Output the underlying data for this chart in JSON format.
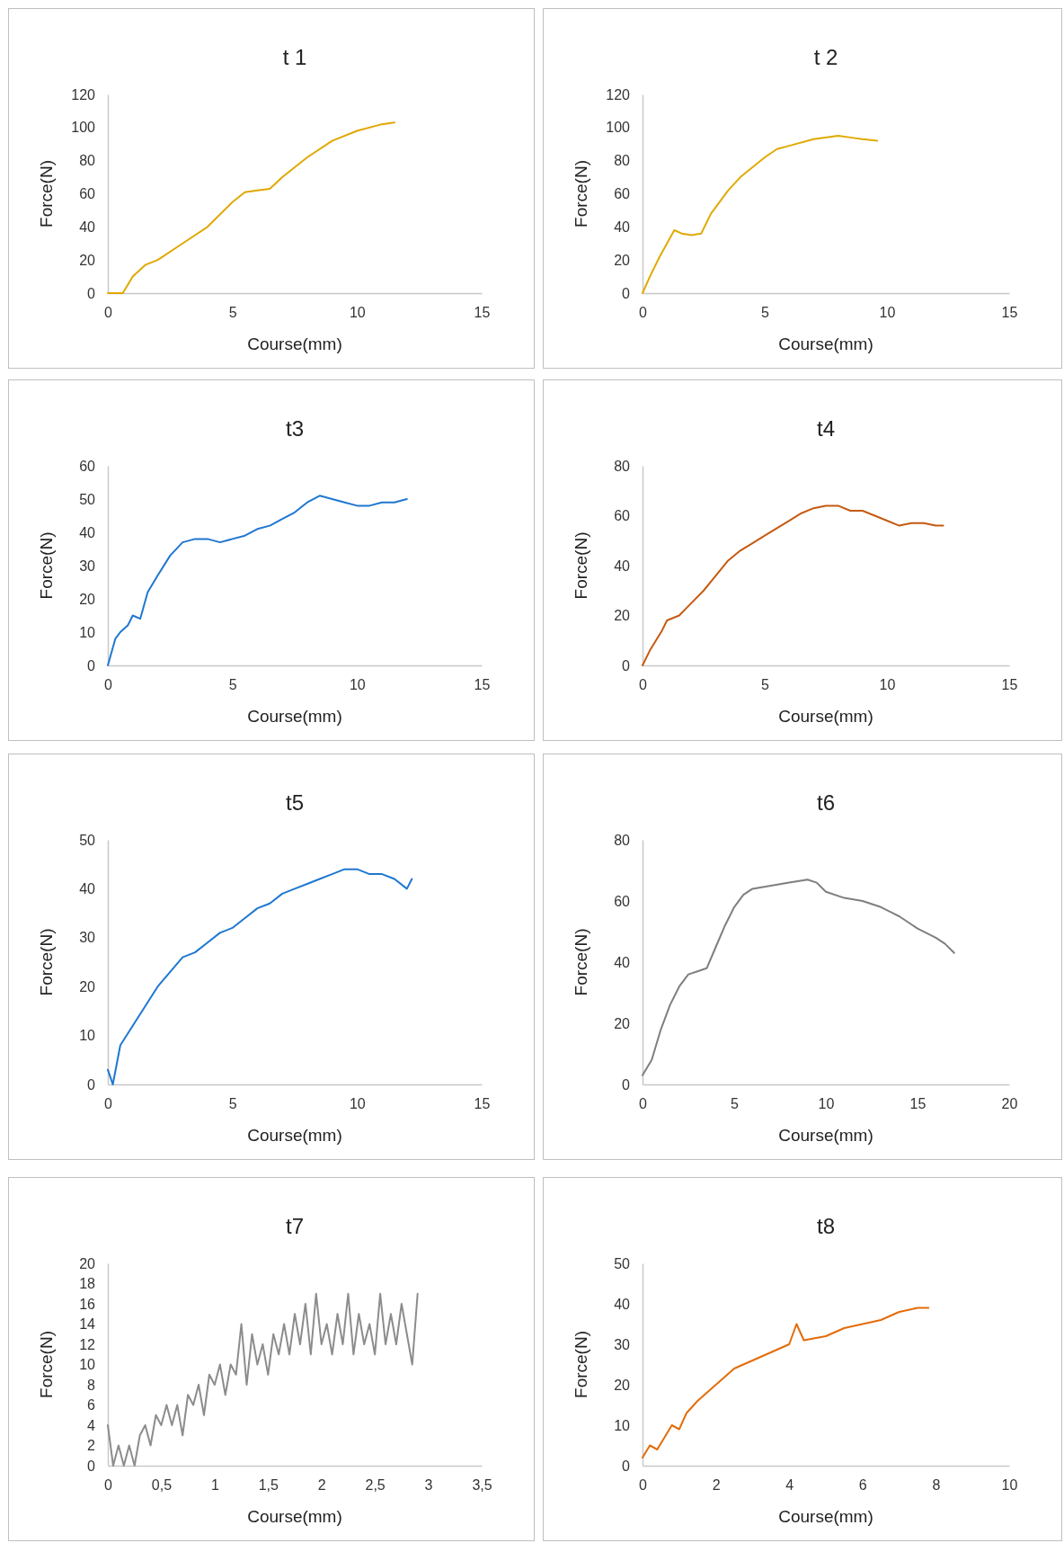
{
  "chart_data": [
    {
      "type": "line",
      "title": "t 1",
      "xlabel": "Course(mm)",
      "ylabel": "Force(N)",
      "color": "#e0a800",
      "xlim": [
        0,
        15
      ],
      "xticks": [
        0,
        5,
        10,
        15
      ],
      "ylim": [
        0,
        120
      ],
      "yticks": [
        0,
        20,
        40,
        60,
        80,
        100,
        120
      ],
      "x": [
        0,
        0.6,
        1,
        1.5,
        2,
        3,
        4,
        5,
        5.5,
        6,
        6.5,
        7,
        8,
        9,
        10,
        11,
        11.5
      ],
      "values": [
        0,
        0,
        10,
        17,
        20,
        30,
        40,
        55,
        61,
        62,
        63,
        70,
        82,
        92,
        98,
        102,
        103
      ]
    },
    {
      "type": "line",
      "title": "t 2",
      "xlabel": "Course(mm)",
      "ylabel": "Force(N)",
      "color": "#e0aa00",
      "xlim": [
        0,
        15
      ],
      "xticks": [
        0,
        5,
        10,
        15
      ],
      "ylim": [
        0,
        120
      ],
      "yticks": [
        0,
        20,
        40,
        60,
        80,
        100,
        120
      ],
      "x": [
        0,
        0.3,
        0.7,
        1,
        1.3,
        1.6,
        2,
        2.4,
        2.8,
        3.5,
        4,
        5,
        5.5,
        6,
        7,
        8,
        8.5,
        9,
        9.6
      ],
      "values": [
        0,
        10,
        22,
        30,
        38,
        36,
        35,
        36,
        48,
        62,
        70,
        82,
        87,
        89,
        93,
        95,
        94,
        93,
        92
      ]
    },
    {
      "type": "line",
      "title": "t3",
      "xlabel": "Course(mm)",
      "ylabel": "Force(N)",
      "color": "#1f77d0",
      "xlim": [
        0,
        15
      ],
      "xticks": [
        0,
        5,
        10,
        15
      ],
      "ylim": [
        0,
        60
      ],
      "yticks": [
        0,
        10,
        20,
        30,
        40,
        50,
        60
      ],
      "x": [
        0,
        0.3,
        0.5,
        0.8,
        1,
        1.3,
        1.6,
        2,
        2.5,
        3,
        3.5,
        4,
        4.5,
        5,
        5.5,
        6,
        6.5,
        7,
        7.5,
        8,
        8.5,
        9,
        9.5,
        10,
        10.5,
        11,
        11.5,
        12
      ],
      "values": [
        0,
        8,
        10,
        12,
        15,
        14,
        22,
        27,
        33,
        37,
        38,
        38,
        37,
        38,
        39,
        41,
        42,
        44,
        46,
        49,
        51,
        50,
        49,
        48,
        48,
        49,
        49,
        50
      ]
    },
    {
      "type": "line",
      "title": "t4",
      "xlabel": "Course(mm)",
      "ylabel": "Force(N)",
      "color": "#c55a11",
      "xlim": [
        0,
        15
      ],
      "xticks": [
        0,
        5,
        10,
        15
      ],
      "ylim": [
        0,
        80
      ],
      "yticks": [
        0,
        20,
        40,
        60,
        80
      ],
      "x": [
        0,
        0.3,
        0.8,
        1,
        1.5,
        2,
        2.5,
        3,
        3.5,
        4,
        4.5,
        5,
        5.5,
        6,
        6.5,
        7,
        7.5,
        8,
        8.5,
        9,
        9.5,
        10,
        10.5,
        11,
        11.5,
        12,
        12.3
      ],
      "values": [
        0,
        6,
        14,
        18,
        20,
        25,
        30,
        36,
        42,
        46,
        49,
        52,
        55,
        58,
        61,
        63,
        64,
        64,
        62,
        62,
        60,
        58,
        56,
        57,
        57,
        56,
        56
      ]
    },
    {
      "type": "line",
      "title": "t5",
      "xlabel": "Course(mm)",
      "ylabel": "Force(N)",
      "color": "#1f77d0",
      "xlim": [
        0,
        15
      ],
      "xticks": [
        0,
        5,
        10,
        15
      ],
      "ylim": [
        0,
        50
      ],
      "yticks": [
        0,
        10,
        20,
        30,
        40,
        50
      ],
      "x": [
        0,
        0.2,
        0.5,
        1,
        1.5,
        2,
        2.5,
        3,
        3.5,
        4,
        4.5,
        5,
        5.5,
        6,
        6.5,
        7,
        7.5,
        8,
        8.5,
        9,
        9.5,
        10,
        10.5,
        11,
        11.5,
        12,
        12.2
      ],
      "values": [
        3,
        0,
        8,
        12,
        16,
        20,
        23,
        26,
        27,
        29,
        31,
        32,
        34,
        36,
        37,
        39,
        40,
        41,
        42,
        43,
        44,
        44,
        43,
        43,
        42,
        40,
        42
      ]
    },
    {
      "type": "line",
      "title": "t6",
      "xlabel": "Course(mm)",
      "ylabel": "Force(N)",
      "color": "#7f7f7f",
      "xlim": [
        0,
        20
      ],
      "xticks": [
        0,
        5,
        10,
        15,
        20
      ],
      "ylim": [
        0,
        80
      ],
      "yticks": [
        0,
        20,
        40,
        60,
        80
      ],
      "x": [
        0,
        0.5,
        1,
        1.5,
        2,
        2.5,
        3,
        3.5,
        4,
        4.5,
        5,
        5.5,
        6,
        7,
        8,
        9,
        9.5,
        10,
        11,
        12,
        13,
        14,
        15,
        16,
        16.5,
        17
      ],
      "values": [
        3,
        8,
        18,
        26,
        32,
        36,
        37,
        38,
        45,
        52,
        58,
        62,
        64,
        65,
        66,
        67,
        66,
        63,
        61,
        60,
        58,
        55,
        51,
        48,
        46,
        43
      ]
    },
    {
      "type": "line",
      "title": "t7",
      "xlabel": "Course(mm)",
      "ylabel": "Force(N)",
      "color": "#8c8c8c",
      "xlim": [
        0,
        3.5
      ],
      "xticks": [
        0,
        {
          "value": 0.5,
          "label": "0,5"
        },
        1,
        {
          "value": 1.5,
          "label": "1,5"
        },
        2,
        {
          "value": 2.5,
          "label": "2,5"
        },
        3,
        {
          "value": 3.5,
          "label": "3,5"
        }
      ],
      "ylim": [
        0,
        20
      ],
      "yticks": [
        0,
        2,
        4,
        6,
        8,
        10,
        12,
        14,
        16,
        18,
        20
      ],
      "x": [
        0,
        0.05,
        0.1,
        0.15,
        0.2,
        0.25,
        0.3,
        0.35,
        0.4,
        0.45,
        0.5,
        0.55,
        0.6,
        0.65,
        0.7,
        0.75,
        0.8,
        0.85,
        0.9,
        0.95,
        1,
        1.05,
        1.1,
        1.15,
        1.2,
        1.25,
        1.3,
        1.35,
        1.4,
        1.45,
        1.5,
        1.55,
        1.6,
        1.65,
        1.7,
        1.75,
        1.8,
        1.85,
        1.9,
        1.95,
        2,
        2.05,
        2.1,
        2.15,
        2.2,
        2.25,
        2.3,
        2.35,
        2.4,
        2.45,
        2.5,
        2.55,
        2.6,
        2.65,
        2.7,
        2.75,
        2.8,
        2.85,
        2.9
      ],
      "values": [
        4,
        0,
        2,
        0,
        2,
        0,
        3,
        4,
        2,
        5,
        4,
        6,
        4,
        6,
        3,
        7,
        6,
        8,
        5,
        9,
        8,
        10,
        7,
        10,
        9,
        14,
        8,
        13,
        10,
        12,
        9,
        13,
        11,
        14,
        11,
        15,
        12,
        16,
        11,
        17,
        12,
        14,
        11,
        15,
        12,
        17,
        11,
        15,
        12,
        14,
        11,
        17,
        12,
        15,
        12,
        16,
        13,
        10,
        17
      ]
    },
    {
      "type": "line",
      "title": "t8",
      "xlabel": "Course(mm)",
      "ylabel": "Force(N)",
      "color": "#e36c09",
      "xlim": [
        0,
        10
      ],
      "xticks": [
        0,
        2,
        4,
        6,
        8,
        10
      ],
      "ylim": [
        0,
        50
      ],
      "yticks": [
        0,
        10,
        20,
        30,
        40,
        50
      ],
      "x": [
        0,
        0.2,
        0.4,
        0.6,
        0.8,
        1,
        1.2,
        1.5,
        2,
        2.5,
        3,
        3.5,
        4,
        4.2,
        4.4,
        5,
        5.5,
        6,
        6.5,
        7,
        7.5,
        7.8
      ],
      "values": [
        2,
        5,
        4,
        7,
        10,
        9,
        13,
        16,
        20,
        24,
        26,
        28,
        30,
        35,
        31,
        32,
        34,
        35,
        36,
        38,
        39,
        39
      ]
    }
  ]
}
